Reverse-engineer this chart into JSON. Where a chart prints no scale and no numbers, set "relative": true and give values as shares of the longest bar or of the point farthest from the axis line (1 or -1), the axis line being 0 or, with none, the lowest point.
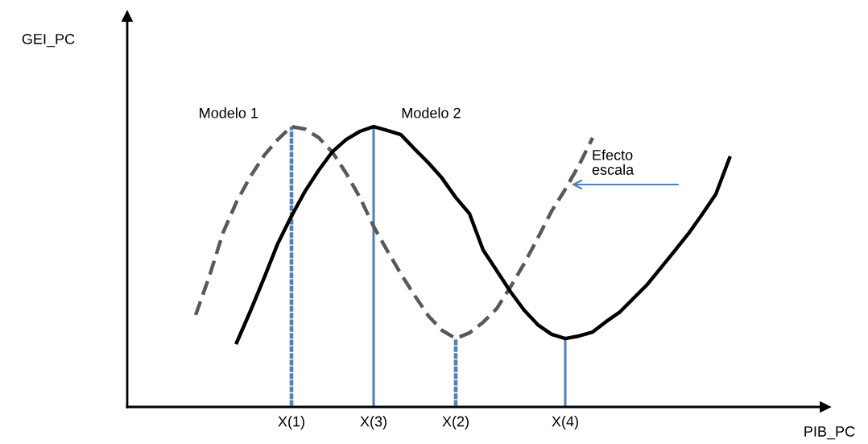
{
  "chart_data": {
    "type": "line",
    "relative": true,
    "xlabel": "PIB_PC",
    "categories": [
      null,
      null,
      null,
      null,
      null,
      null,
      null,
      null,
      null,
      null,
      null,
      null,
      "X(1)",
      null,
      null,
      null,
      null,
      null,
      "X(3)",
      null,
      null,
      null,
      null,
      null,
      "X(2)",
      null,
      null,
      null,
      null,
      null,
      null,
      null,
      "X(4)",
      null,
      null,
      null,
      null,
      null,
      null,
      null,
      null,
      null,
      null,
      null,
      null,
      null,
      null,
      null,
      null,
      null,
      null
    ],
    "series": [
      {
        "name": "Modelo 1",
        "color": "#595959",
        "line_style": "dashed",
        "values": [
          null,
          null,
          null,
          null,
          null,
          0.328,
          0.466,
          0.621,
          0.733,
          0.822,
          0.897,
          0.954,
          1,
          0.991,
          0.96,
          0.908,
          0.833,
          0.747,
          0.644,
          0.557,
          0.474,
          0.397,
          0.325,
          0.273,
          0.244,
          0.264,
          0.302,
          0.351,
          0.428,
          0.511,
          0.603,
          0.698,
          0.776,
          0.862,
          0.96,
          null,
          null,
          null,
          null,
          null,
          null,
          null,
          null,
          null,
          null,
          null,
          null,
          null,
          null,
          null,
          null
        ]
      },
      {
        "name": "Modelo 2",
        "color": "#000000",
        "line_style": "solid",
        "values": [
          null,
          null,
          null,
          null,
          null,
          null,
          null,
          null,
          0.23,
          0.342,
          0.46,
          0.583,
          0.681,
          0.77,
          0.845,
          0.911,
          0.954,
          0.983,
          1,
          0.986,
          0.971,
          0.92,
          0.871,
          0.816,
          0.747,
          0.69,
          0.56,
          0.486,
          0.411,
          0.345,
          0.293,
          0.259,
          0.244,
          0.253,
          0.267,
          0.305,
          0.339,
          0.388,
          0.437,
          0.497,
          0.557,
          0.618,
          0.687,
          0.759,
          0.888,
          null,
          null,
          null,
          null,
          null,
          null
        ]
      },
      {
        "type": "bar",
        "color": "#4f81bd",
        "line_style": "dashed",
        "values": [
          null,
          null,
          null,
          null,
          null,
          null,
          null,
          null,
          null,
          null,
          null,
          null,
          1,
          null,
          null,
          null,
          null,
          null,
          null,
          null,
          null,
          null,
          null,
          null,
          0.244,
          null,
          null,
          null,
          null,
          null,
          null,
          null,
          null,
          null,
          null,
          null,
          null,
          null,
          null,
          null,
          null,
          null,
          null,
          null,
          null,
          null,
          null,
          null,
          null,
          null,
          null
        ]
      },
      {
        "type": "bar",
        "color": "#4f81bd",
        "line_style": "solid",
        "values": [
          null,
          null,
          null,
          null,
          null,
          null,
          null,
          null,
          null,
          null,
          null,
          null,
          null,
          null,
          null,
          null,
          null,
          null,
          1,
          null,
          null,
          null,
          null,
          null,
          null,
          null,
          null,
          null,
          null,
          null,
          null,
          null,
          0.244,
          null,
          null,
          null,
          null,
          null,
          null,
          null,
          null,
          null,
          null,
          null,
          null,
          null,
          null,
          null,
          null,
          null,
          null
        ]
      }
    ],
    "annotations": [
      "GEI_PC",
      "Efecto\nescala"
    ],
    "marker": "none",
    "legend": false,
    "grid": false,
    "tick_labels": "x"
  }
}
